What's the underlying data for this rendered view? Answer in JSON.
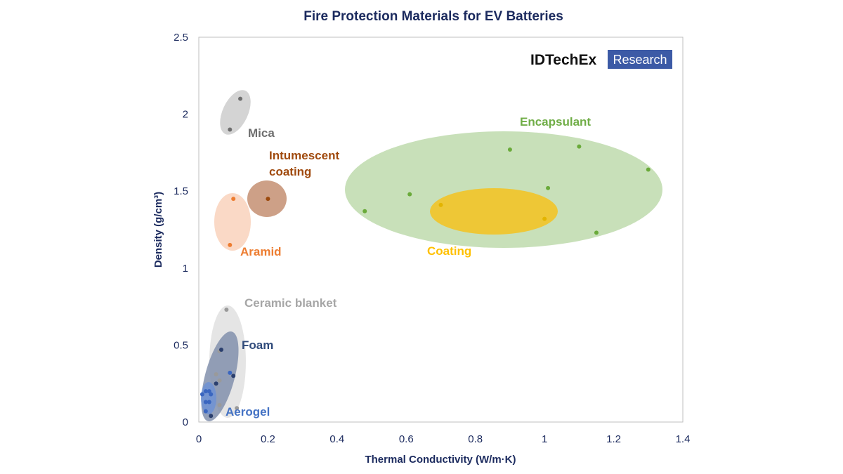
{
  "chart_data": {
    "type": "scatter",
    "title": "Fire Protection Materials for EV Batteries",
    "xlabel": "Thermal Conductivity (W/m·K)",
    "ylabel": "Density (g/cm³)",
    "xlim": [
      0,
      1.4
    ],
    "ylim": [
      0,
      2.5
    ],
    "xticks": [
      "0",
      "0.2",
      "0.4",
      "0.6",
      "0.8",
      "1",
      "1.2",
      "1.4"
    ],
    "yticks": [
      "0",
      "0.5",
      "1",
      "1.5",
      "2",
      "2.5"
    ],
    "grid": false,
    "legend": "none",
    "logo": {
      "text1": "IDTechEx",
      "text2": "Research",
      "color": "#3c5aa6"
    },
    "series": [
      {
        "name": "Mica",
        "color": "#6e6e6e",
        "fill": "#cfcfcf",
        "label_color": "#6e6e6e",
        "points": [
          [
            0.12,
            2.1
          ],
          [
            0.09,
            1.9
          ]
        ]
      },
      {
        "name": "Intumescent coating",
        "color": "#9c4a0e",
        "fill": "#c8967a",
        "label_color": "#a04a0e",
        "points": [
          [
            0.2,
            1.45
          ]
        ]
      },
      {
        "name": "Aramid",
        "color": "#ed7d31",
        "fill": "#f9d5c0",
        "label_color": "#ed7d31",
        "points": [
          [
            0.1,
            1.45
          ],
          [
            0.09,
            1.15
          ]
        ]
      },
      {
        "name": "Encapsulant",
        "color": "#6aaa3a",
        "fill": "#c5deb5",
        "label_color": "#70ad47",
        "points": [
          [
            0.48,
            1.37
          ],
          [
            0.61,
            1.48
          ],
          [
            0.9,
            1.77
          ],
          [
            1.01,
            1.52
          ],
          [
            1.1,
            1.79
          ],
          [
            1.3,
            1.64
          ],
          [
            1.15,
            1.23
          ]
        ]
      },
      {
        "name": "Coating",
        "color": "#e3b400",
        "fill": "#f0c52e",
        "label_color": "#ffc000",
        "points": [
          [
            0.7,
            1.41
          ],
          [
            1.0,
            1.32
          ]
        ]
      },
      {
        "name": "Ceramic blanket",
        "color": "#9a9a9a",
        "fill": "#e0e0e0",
        "label_color": "#a6a6a6",
        "points": [
          [
            0.08,
            0.73
          ],
          [
            0.06,
            0.46
          ],
          [
            0.05,
            0.31
          ],
          [
            0.06,
            0.27
          ],
          [
            0.06,
            0.11
          ],
          [
            0.11,
            0.09
          ]
        ]
      },
      {
        "name": "Foam",
        "color": "#2b3f6e",
        "fill": "#8391ad",
        "label_color": "#2f4a7a",
        "points": [
          [
            0.065,
            0.47
          ],
          [
            0.05,
            0.25
          ],
          [
            0.1,
            0.3
          ],
          [
            0.035,
            0.04
          ]
        ]
      },
      {
        "name": "Aerogel",
        "color": "#3a66c0",
        "fill": "#6f92d4",
        "label_color": "#4472c4",
        "points": [
          [
            0.01,
            0.18
          ],
          [
            0.02,
            0.2
          ],
          [
            0.03,
            0.2
          ],
          [
            0.035,
            0.18
          ],
          [
            0.02,
            0.13
          ],
          [
            0.03,
            0.13
          ],
          [
            0.02,
            0.07
          ],
          [
            0.09,
            0.32
          ]
        ]
      }
    ]
  }
}
